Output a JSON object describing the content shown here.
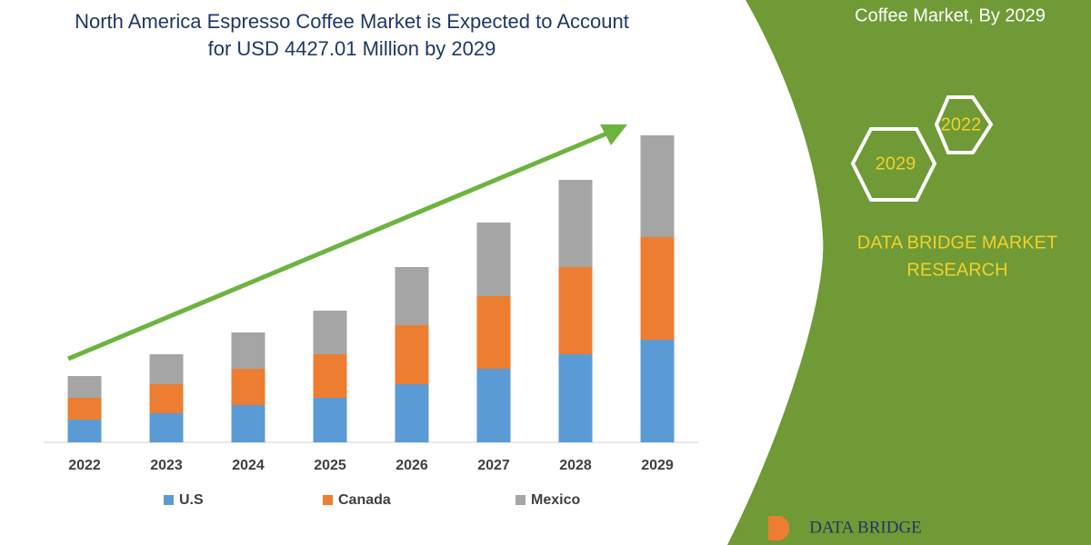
{
  "chart_data": {
    "type": "stacked_bar",
    "title_lines": [
      "North America Espresso Coffee Market is Expected to Account",
      "for USD 4427.01 Million by 2029"
    ],
    "categories": [
      "2022",
      "2023",
      "2024",
      "2025",
      "2026",
      "2027",
      "2028",
      "2029"
    ],
    "series": [
      {
        "name": "U.S",
        "color": "#5b9bd5",
        "values": [
          25,
          32,
          41,
          49,
          64,
          81,
          97,
          113
        ]
      },
      {
        "name": "Canada",
        "color": "#ed7d31",
        "values": [
          24,
          32,
          40,
          48,
          65,
          80,
          96,
          113
        ]
      },
      {
        "name": "Mexico",
        "color": "#a5a5a5",
        "values": [
          24,
          33,
          40,
          48,
          64,
          81,
          96,
          112
        ]
      }
    ],
    "ylim": [
      0,
      350
    ]
  },
  "side_panel": {
    "heading": "Coffee Market, By 2029",
    "hexagons": [
      "2022",
      "2029"
    ],
    "brand_lines": [
      "DATA BRIDGE MARKET",
      "RESEARCH"
    ],
    "logo": "DATA BRIDGE"
  }
}
